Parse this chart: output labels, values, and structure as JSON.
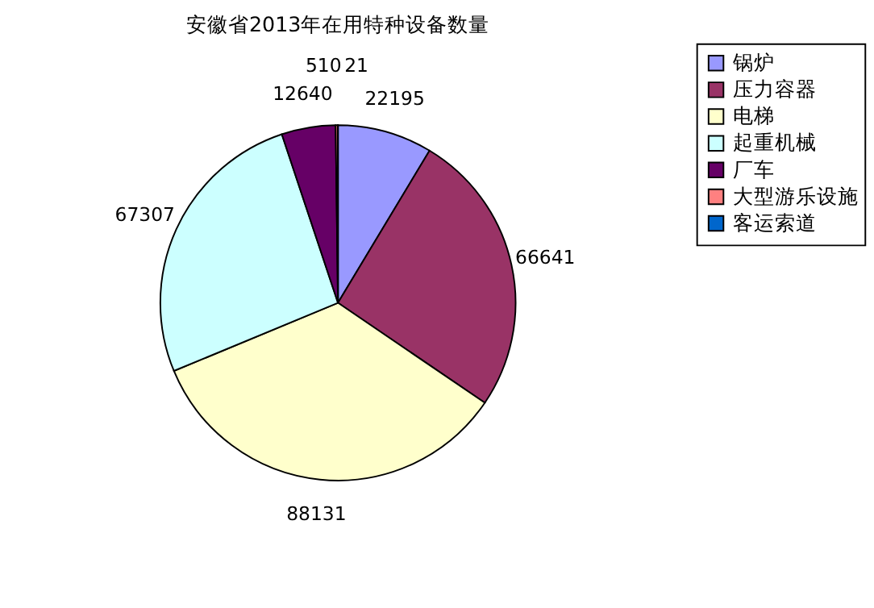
{
  "chart_data": {
    "type": "pie",
    "title": "安徽省2013年在用特种设备数量",
    "categories": [
      "锅炉",
      "压力容器",
      "电梯",
      "起重机械",
      "厂车",
      "大型游乐设施",
      "客运索道"
    ],
    "values": [
      22195,
      66641,
      88131,
      67307,
      12640,
      510,
      21
    ],
    "colors": [
      "#9999ff",
      "#993366",
      "#ffffcc",
      "#ccffff",
      "#660066",
      "#ff8080",
      "#0066cc"
    ],
    "data_labels": true,
    "legend": "right"
  }
}
